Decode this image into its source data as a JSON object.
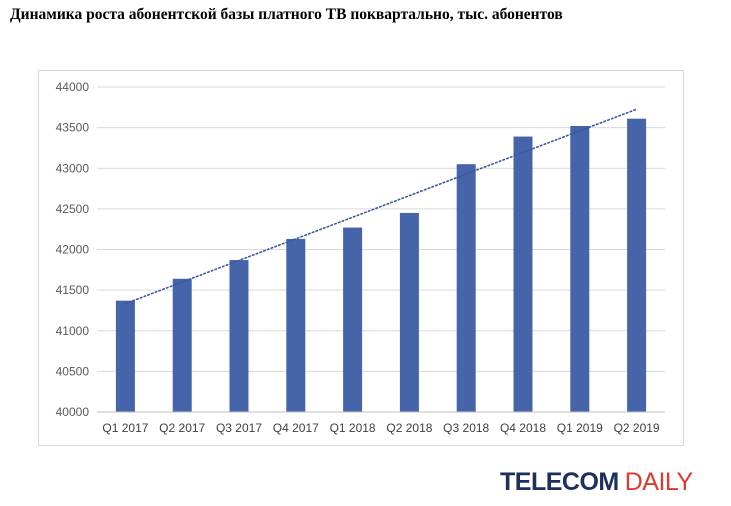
{
  "title": "Динамика роста абонентской базы платного ТВ поквартально, тыс. абонентов",
  "logo": {
    "word1": "TELECOM",
    "word2": "DAILY",
    "color1": "#1d2f5e",
    "color2": "#e03a2d"
  },
  "chart_data": {
    "type": "bar",
    "title": "Динамика роста абонентской базы платного ТВ поквартально, тыс. абонентов",
    "categories": [
      "Q1 2017",
      "Q2 2017",
      "Q3 2017",
      "Q4 2017",
      "Q1 2018",
      "Q2 2018",
      "Q3 2018",
      "Q4 2018",
      "Q1 2019",
      "Q2 2019"
    ],
    "values": [
      41370,
      41640,
      41870,
      42130,
      42270,
      42450,
      43050,
      43390,
      43520,
      43610
    ],
    "ylim": [
      40000,
      44000
    ],
    "yticks": [
      40000,
      40500,
      41000,
      41500,
      42000,
      42500,
      43000,
      43500,
      44000
    ],
    "grid": true,
    "trendline": "linear",
    "bar_color": "#4564a9",
    "trend_color": "#3a55a0",
    "grid_color": "#d9d9d9"
  }
}
